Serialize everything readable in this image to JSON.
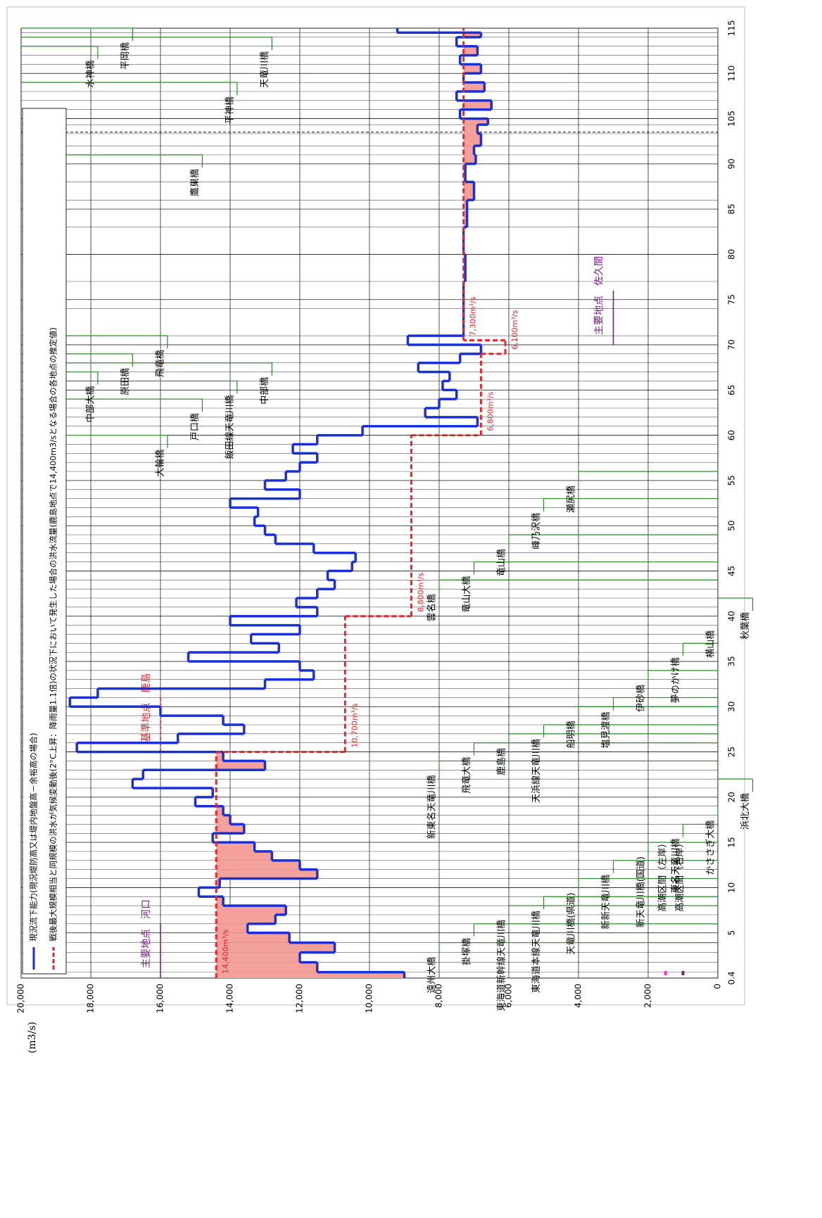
{
  "chart_data": {
    "type": "line",
    "y_axis_label": "(m3/s)",
    "xlim": [
      0.4,
      115
    ],
    "xticks": [
      0.4,
      5,
      10,
      15,
      20,
      25,
      30,
      35,
      40,
      45,
      50,
      55,
      60,
      65,
      70,
      75,
      80,
      85,
      90,
      105,
      110,
      115
    ],
    "ylim": [
      0,
      20000
    ],
    "yticks": [
      0,
      {
        "value": 2000,
        "label": "2,000"
      },
      {
        "value": 4000,
        "label": "4,000"
      },
      {
        "value": 6000,
        "label": "6,000"
      },
      {
        "value": 8000,
        "label": "8,000"
      },
      {
        "value": 10000,
        "label": "10,000"
      },
      {
        "value": 12000,
        "label": "12,000"
      },
      {
        "value": 14000,
        "label": "14,000"
      },
      {
        "value": 16000,
        "label": "16,000"
      },
      {
        "value": 18000,
        "label": "18,000"
      },
      {
        "value": 20000,
        "label": "20,000"
      }
    ],
    "grid": true,
    "shortfall_color": "#f4a09b",
    "series": [
      {
        "name": "現況流下能力(現況堤防高又は堤内地盤高－余裕高の場合)",
        "color": "#1a2fd6",
        "style": "solid",
        "x": [
          0.4,
          1,
          2,
          3,
          4,
          5,
          6,
          7,
          8,
          9,
          10,
          11,
          12,
          13,
          14,
          15,
          16,
          17,
          18,
          19,
          20,
          21,
          22,
          23,
          24,
          25,
          26,
          27,
          28,
          29,
          30,
          31,
          32,
          33,
          34,
          35,
          36,
          37,
          38,
          39,
          40,
          41,
          42,
          43,
          44,
          45,
          46,
          47,
          48,
          49,
          50,
          51,
          52,
          53,
          54,
          55,
          56,
          57,
          58,
          59,
          60,
          61,
          62,
          63,
          64,
          65,
          66,
          67,
          68,
          69,
          70,
          71,
          74,
          77,
          80,
          83,
          86,
          88,
          90,
          93,
          96,
          100,
          103,
          105,
          106,
          107,
          108,
          109,
          110,
          111,
          112,
          113,
          114,
          114.5
        ],
        "values": [
          9000,
          11500,
          12000,
          11000,
          12300,
          13500,
          12700,
          12400,
          14200,
          14900,
          14300,
          11500,
          12000,
          12800,
          13300,
          14500,
          13600,
          14000,
          14200,
          15000,
          14500,
          16800,
          16500,
          13000,
          14200,
          18400,
          15500,
          13600,
          14200,
          16000,
          18600,
          17800,
          13000,
          11600,
          12000,
          15200,
          12600,
          13400,
          12000,
          14000,
          11500,
          12100,
          11500,
          11000,
          11200,
          10500,
          10400,
          11600,
          12700,
          13000,
          13300,
          13200,
          14000,
          12000,
          13000,
          12400,
          12000,
          11500,
          12200,
          11500,
          10200,
          6900,
          8400,
          8000,
          7500,
          7900,
          7700,
          8600,
          7400,
          6800,
          8900,
          7300,
          7300,
          7250,
          7300,
          7200,
          7000,
          7250,
          6950,
          7000,
          6800,
          6900,
          6600,
          7400,
          6500,
          7500,
          6700,
          7300,
          6800,
          7400,
          6900,
          7500,
          6800,
          9200
        ]
      },
      {
        "name": "戦後最大規模相当と同規模の洪水が気候変動後(2°C上昇：降雨量1.1倍)の状況下において発生した場合の洪水流量(鹿島地点で14,400m3/sとなる場合の各地点の推定値)",
        "color": "#e8262a",
        "style": "dashed",
        "x": [
          0.4,
          25,
          40,
          60,
          69,
          70.5
        ],
        "values": [
          14400,
          10700,
          8800,
          6800,
          6100,
          7300
        ],
        "value_labels": [
          "14,400m³/s",
          "10,700m³/s",
          "8,800m³/s",
          "6,800m³/s",
          "6,100m³/s",
          "7,300m³/s"
        ]
      }
    ],
    "points": [
      {
        "kind": "主要地点",
        "name": "河口",
        "km": 0.4,
        "color": "#7a1f8a"
      },
      {
        "kind": "基準地点",
        "name": "鹿島",
        "km": 25,
        "color": "#e8262a"
      },
      {
        "kind": "主要地点",
        "name": "佐久間",
        "km": 70,
        "color": "#7a1f8a"
      }
    ],
    "tidal_sections": [
      {
        "name": "高潮区間（左岸）",
        "color": "#ff33cc"
      },
      {
        "name": "高潮区間（右岸）",
        "color": "#7a1f6e"
      }
    ],
    "bridges": [
      {
        "name": "遠州大橋",
        "km": 4
      },
      {
        "name": "掛塚橋",
        "km": 6
      },
      {
        "name": "東海道新幹線天竜川橋",
        "km": 8
      },
      {
        "name": "東海道本線天竜川橋",
        "km": 9
      },
      {
        "name": "天竜川橋(県道)",
        "km": 11
      },
      {
        "name": "新新天竜川橋",
        "km": 13
      },
      {
        "name": "新天竜川橋(国道)",
        "km": 15
      },
      {
        "name": "東名天竜川橋",
        "km": 17
      },
      {
        "name": "かささぎ大橋",
        "km": 19
      },
      {
        "name": "浜北大橋",
        "km": 22
      },
      {
        "name": "新東名天竜川橋",
        "km": 24
      },
      {
        "name": "飛竜大橋",
        "km": 26
      },
      {
        "name": "鹿島橋",
        "km": 27
      },
      {
        "name": "天浜線天竜川橋",
        "km": 28
      },
      {
        "name": "船明橋",
        "km": 30
      },
      {
        "name": "塩見渡橋",
        "km": 31
      },
      {
        "name": "伊砂橋",
        "km": 34
      },
      {
        "name": "夢のかけ橋",
        "km": 37
      },
      {
        "name": "横山橋",
        "km": 40
      },
      {
        "name": "秋葉橋",
        "km": 42
      },
      {
        "name": "雲名橋",
        "km": 44
      },
      {
        "name": "竜山大橋",
        "km": 46
      },
      {
        "name": "竜山橋",
        "km": 49
      },
      {
        "name": "峰乃沢橋",
        "km": 53
      },
      {
        "name": "瀬尻橋",
        "km": 56
      },
      {
        "name": "大輪橋",
        "km": 60
      },
      {
        "name": "戸口橋",
        "km": 64
      },
      {
        "name": "飯田線天竜川橋",
        "km": 66
      },
      {
        "name": "中部大橋",
        "km": 67
      },
      {
        "name": "中部橋",
        "km": 68
      },
      {
        "name": "原田橋",
        "km": 69
      },
      {
        "name": "飛竜橋",
        "km": 71
      },
      {
        "name": "鷹巣橋",
        "km": 93
      },
      {
        "name": "平神橋",
        "km": 109
      },
      {
        "name": "水神橋",
        "km": 113
      },
      {
        "name": "天竜川橋",
        "km": 114
      },
      {
        "name": "平岡橋",
        "km": 115
      }
    ]
  }
}
